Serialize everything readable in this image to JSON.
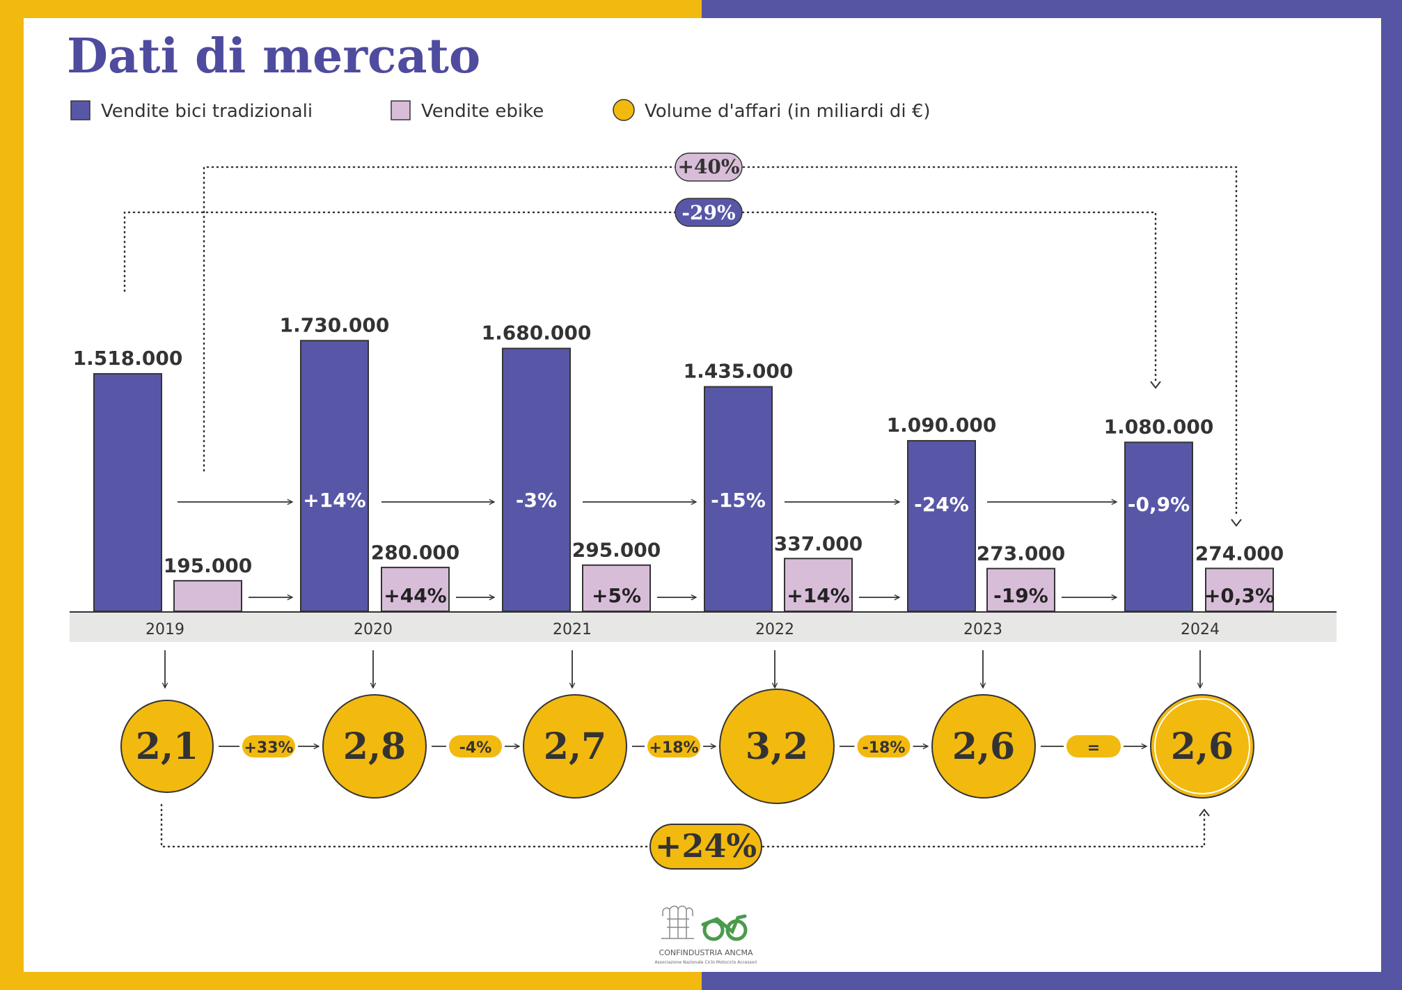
{
  "title": "Dati di mercato",
  "colors": {
    "frame_left": "#F2B90F",
    "frame_right": "#5555A3",
    "traditional": "#5857A7",
    "ebike": "#D8BDD8",
    "volume": "#F2B90F",
    "title": "#4F4B9E",
    "axis_band": "#E7E7E5",
    "text": "#333333"
  },
  "legend": [
    {
      "label": "Vendite bici tradizionali",
      "swatch": "square-traditional"
    },
    {
      "label": "Vendite ebike",
      "swatch": "square-ebike"
    },
    {
      "label": "Volume d'affari (in miliardi di €)",
      "swatch": "circle-volume"
    }
  ],
  "summary": {
    "ebike_change_2019_2024": "+40%",
    "traditional_change_2019_2024": "-29%",
    "volume_change_2019_2024": "+24%"
  },
  "chart_data": {
    "type": "bar",
    "categories": [
      "2019",
      "2020",
      "2021",
      "2022",
      "2023",
      "2024"
    ],
    "series": [
      {
        "name": "Vendite bici tradizionali",
        "values": [
          1518000,
          1730000,
          1680000,
          1435000,
          1090000,
          1080000
        ],
        "labels": [
          "1.518.000",
          "1.730.000",
          "1.680.000",
          "1.435.000",
          "1.090.000",
          "1.080.000"
        ],
        "changes": [
          "",
          "+14%",
          "-3%",
          "-15%",
          "-24%",
          "-0,9%"
        ]
      },
      {
        "name": "Vendite ebike",
        "values": [
          195000,
          280000,
          295000,
          337000,
          273000,
          274000
        ],
        "labels": [
          "195.000",
          "280.000",
          "295.000",
          "337.000",
          "273.000",
          "274.000"
        ],
        "changes": [
          "",
          "+44%",
          "+5%",
          "+14%",
          "-19%",
          "+0,3%"
        ]
      },
      {
        "name": "Volume d'affari (in miliardi di €)",
        "values": [
          2.1,
          2.8,
          2.7,
          3.2,
          2.6,
          2.6
        ],
        "labels": [
          "2,1",
          "2,8",
          "2,7",
          "3,2",
          "2,6",
          "2,6"
        ],
        "changes": [
          "+33%",
          "-4%",
          "+18%",
          "-18%",
          "="
        ]
      }
    ]
  },
  "logo": {
    "org": "CONFINDUSTRIA ANCMA",
    "subtitle": "Associazione Nazionale Ciclo Motociclo Accessori"
  }
}
